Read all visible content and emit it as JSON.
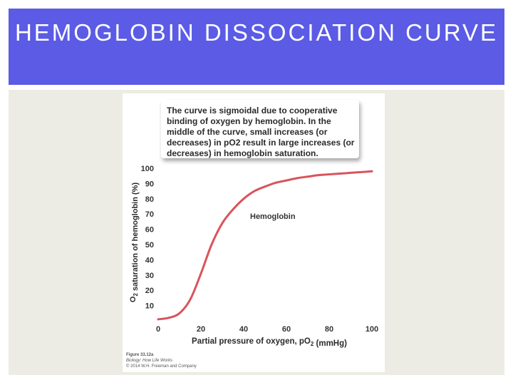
{
  "slide": {
    "title": "HEMOGLOBIN DISSOCIATION CURVE",
    "colors": {
      "title_bar": "#5b5be6",
      "title_text": "#ffffff",
      "content_bg": "#ecece4"
    }
  },
  "callout": {
    "text": "The curve is sigmoidal due to cooperative binding of oxygen by hemoglobin. In the middle of the curve, small increases (or decreases) in pO2 result in large increases (or decreases) in hemoglobin saturation."
  },
  "caption": {
    "figure": "Figure 33.12a",
    "book": "Biology: How Life Works",
    "copyright": "© 2014 W.H. Freeman and Company"
  },
  "chart_data": {
    "type": "line",
    "xlabel": "Partial pressure of oxygen, pO2 (mmHg)",
    "ylabel": "O2 saturation of hemoglobin (%)",
    "xlim": [
      0,
      100
    ],
    "ylim": [
      0,
      100
    ],
    "x_ticks": [
      0,
      20,
      40,
      60,
      80,
      100
    ],
    "y_ticks": [
      10,
      20,
      30,
      40,
      50,
      60,
      70,
      80,
      90,
      100
    ],
    "grid": false,
    "series": [
      {
        "name": "Hemoglobin",
        "color": "#d9545b",
        "x": [
          0,
          5,
          10,
          15,
          20,
          25,
          30,
          35,
          40,
          45,
          50,
          55,
          60,
          65,
          70,
          75,
          80,
          85,
          90,
          95,
          100
        ],
        "y": [
          1,
          2,
          5,
          14,
          31,
          50,
          64,
          73,
          80,
          85,
          88,
          90.5,
          92,
          93.5,
          94.5,
          95.5,
          96,
          96.5,
          97,
          97.5,
          98
        ]
      }
    ]
  }
}
